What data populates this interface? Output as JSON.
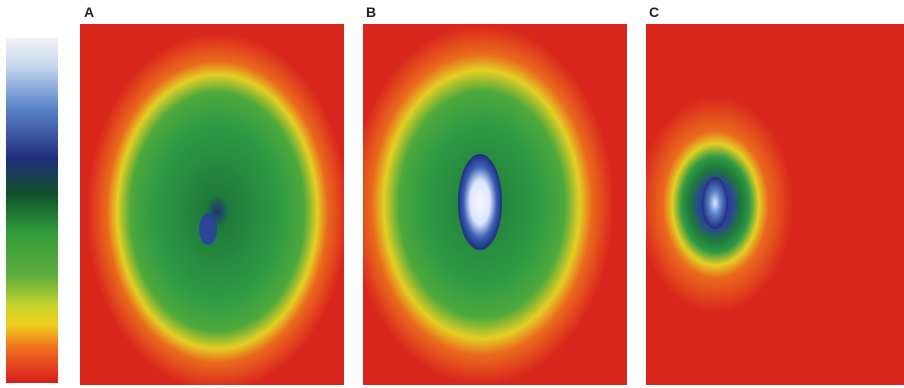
{
  "panels": [
    {
      "label": "A"
    },
    {
      "label": "B"
    },
    {
      "label": "C"
    }
  ],
  "colors": {
    "background": "#ffffff",
    "scale": [
      "#f3f4f6",
      "#7fa6d6",
      "#3a5fb5",
      "#1f2d7a",
      "#0f4f2a",
      "#2f9a3a",
      "#5fae3d",
      "#c9d52c",
      "#f0d01f",
      "#f06d1e",
      "#d81d1d"
    ],
    "heat_red": "#d9261c",
    "heat_orange": "#ea6a1d",
    "heat_yellow": "#e4cf24",
    "heat_green": "#2e9a44",
    "heat_dark_green": "#1e7a3a",
    "heat_blue": "#2c3f9f",
    "heat_white": "#f7f8ff"
  }
}
